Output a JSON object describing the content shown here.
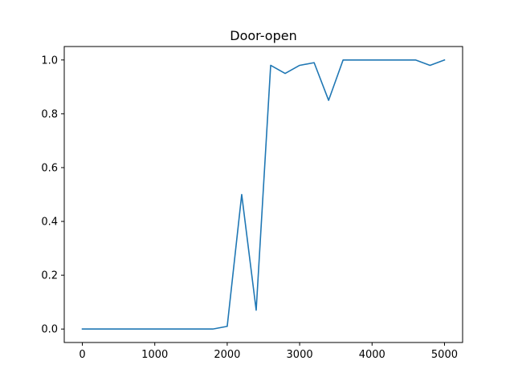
{
  "chart_data": {
    "type": "line",
    "title": "Door-open",
    "xlabel": "",
    "ylabel": "",
    "xlim": [
      -250,
      5250
    ],
    "ylim": [
      -0.05,
      1.05
    ],
    "x_ticks": [
      0,
      1000,
      2000,
      3000,
      4000,
      5000
    ],
    "x_tick_labels": [
      "0",
      "1000",
      "2000",
      "3000",
      "4000",
      "5000"
    ],
    "y_ticks": [
      0.0,
      0.2,
      0.4,
      0.6,
      0.8,
      1.0
    ],
    "y_tick_labels": [
      "0.0",
      "0.2",
      "0.4",
      "0.6",
      "0.8",
      "1.0"
    ],
    "grid": false,
    "series": [
      {
        "color": "#1f77b4",
        "x": [
          0,
          200,
          400,
          600,
          800,
          1000,
          1200,
          1400,
          1600,
          1800,
          2000,
          2200,
          2400,
          2600,
          2800,
          3000,
          3200,
          3400,
          3600,
          3800,
          4000,
          4200,
          4400,
          4600,
          4800,
          5000
        ],
        "y": [
          0,
          0,
          0,
          0,
          0,
          0,
          0,
          0,
          0,
          0,
          0.01,
          0.5,
          0.07,
          0.98,
          0.95,
          0.98,
          0.99,
          0.85,
          1.0,
          1.0,
          1.0,
          1.0,
          1.0,
          1.0,
          0.98,
          1.0
        ]
      }
    ]
  }
}
